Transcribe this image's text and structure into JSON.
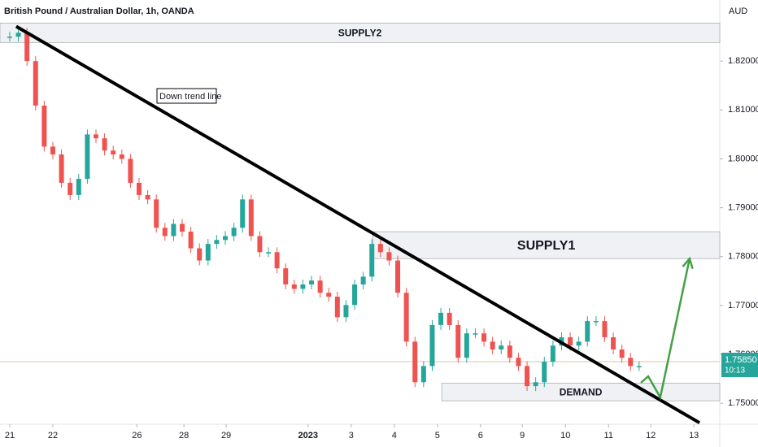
{
  "chart_data": {
    "type": "candlestick",
    "title": "British Pound / Australian Dollar, 1h, OANDA",
    "currency": "AUD",
    "up_color": "#26a69a",
    "down_color": "#ef5350",
    "x": [
      0,
      0.2,
      0.4,
      0.6,
      0.8,
      1,
      1.2,
      1.4,
      1.6,
      1.8,
      2,
      2.2,
      2.4,
      2.6,
      2.8,
      3,
      3.2,
      3.4,
      3.6,
      3.8,
      4,
      4.2,
      4.4,
      4.6,
      4.8,
      5,
      5.2,
      5.4,
      5.6,
      5.8,
      6,
      6.2,
      6.4,
      6.6,
      6.8,
      7,
      7.2,
      7.4,
      7.6,
      7.8,
      8,
      8.2,
      8.4,
      8.6,
      8.8,
      9,
      9.2,
      9.4,
      9.6,
      9.8,
      10,
      10.2,
      10.4,
      10.6,
      10.8,
      11,
      11.2,
      11.4,
      11.6,
      11.8,
      12,
      12.2,
      12.4,
      12.6,
      12.8,
      13,
      13.2,
      13.4,
      13.6,
      13.8,
      14,
      14.2,
      14.4,
      14.6
    ],
    "values": [
      1.825,
      1.8258,
      1.82,
      1.8109,
      1.8025,
      1.8009,
      1.7951,
      1.7926,
      1.7959,
      1.805,
      1.8042,
      1.8017,
      1.8009,
      1.8,
      1.7951,
      1.7926,
      1.7917,
      1.7859,
      1.7842,
      1.7867,
      1.7851,
      1.7817,
      1.7792,
      1.7826,
      1.7834,
      1.7842,
      1.7859,
      1.7917,
      1.7842,
      1.7809,
      1.7809,
      1.7776,
      1.7743,
      1.7734,
      1.7743,
      1.7751,
      1.7726,
      1.7718,
      1.7676,
      1.7701,
      1.7743,
      1.7759,
      1.7826,
      1.7809,
      1.7792,
      1.7726,
      1.7626,
      1.7543,
      1.7576,
      1.766,
      1.7685,
      1.766,
      1.7593,
      1.7643,
      1.7643,
      1.7626,
      1.761,
      1.7618,
      1.7593,
      1.7576,
      1.7535,
      1.7543,
      1.7585,
      1.7618,
      1.7635,
      1.7618,
      1.7626,
      1.7668,
      1.7668,
      1.7635,
      1.761,
      1.7593,
      1.7576,
      1.7576
    ],
    "xlim": [
      -0.226,
      16.47
    ],
    "ylim": [
      1.7457,
      1.8325
    ],
    "xticks": [
      {
        "value": 0,
        "label": "21"
      },
      {
        "value": 1,
        "label": "22"
      },
      {
        "value": 2.95,
        "label": "26"
      },
      {
        "value": 4.04,
        "label": "28"
      },
      {
        "value": 5.02,
        "label": "29"
      },
      {
        "value": 6.92,
        "label": "2023"
      },
      {
        "value": 7.92,
        "label": "3"
      },
      {
        "value": 8.92,
        "label": "4"
      },
      {
        "value": 9.92,
        "label": "5"
      },
      {
        "value": 10.92,
        "label": "6"
      },
      {
        "value": 11.89,
        "label": "9"
      },
      {
        "value": 12.89,
        "label": "10"
      },
      {
        "value": 13.89,
        "label": "11"
      },
      {
        "value": 14.87,
        "label": "12"
      },
      {
        "value": 15.87,
        "label": "13"
      }
    ],
    "yticks": [
      {
        "value": 1.75,
        "label": "1.75000"
      },
      {
        "value": 1.76,
        "label": "1.76000"
      },
      {
        "value": 1.77,
        "label": "1.77000"
      },
      {
        "value": 1.78,
        "label": "1.78000"
      },
      {
        "value": 1.79,
        "label": "1.79000"
      },
      {
        "value": 1.8,
        "label": "1.80000"
      },
      {
        "value": 1.81,
        "label": "1.81000"
      },
      {
        "value": 1.82,
        "label": "1.82000"
      }
    ],
    "zones": [
      {
        "label": "SUPPLY2",
        "start": -0.226,
        "low": 1.8238,
        "high": 1.8278
      },
      {
        "label": "SUPPLY1",
        "start": 8.42,
        "low": 1.7796,
        "high": 1.7851
      },
      {
        "label": "DEMAND",
        "start": 10.02,
        "low": 1.7505,
        "high": 1.7541
      }
    ],
    "trend_line": {
      "label": "Down trend line",
      "x": [
        0.15,
        16.0
      ],
      "y": [
        1.8271,
        1.746
      ]
    },
    "projection": {
      "color": "#43a047",
      "x": [
        14.64,
        14.81,
        15.09,
        15.77
      ],
      "y": [
        1.7542,
        1.7555,
        1.7512,
        1.7796
      ]
    },
    "current_price": {
      "value": 1.7585,
      "label": "1.75850"
    },
    "countdown": "10:13"
  }
}
